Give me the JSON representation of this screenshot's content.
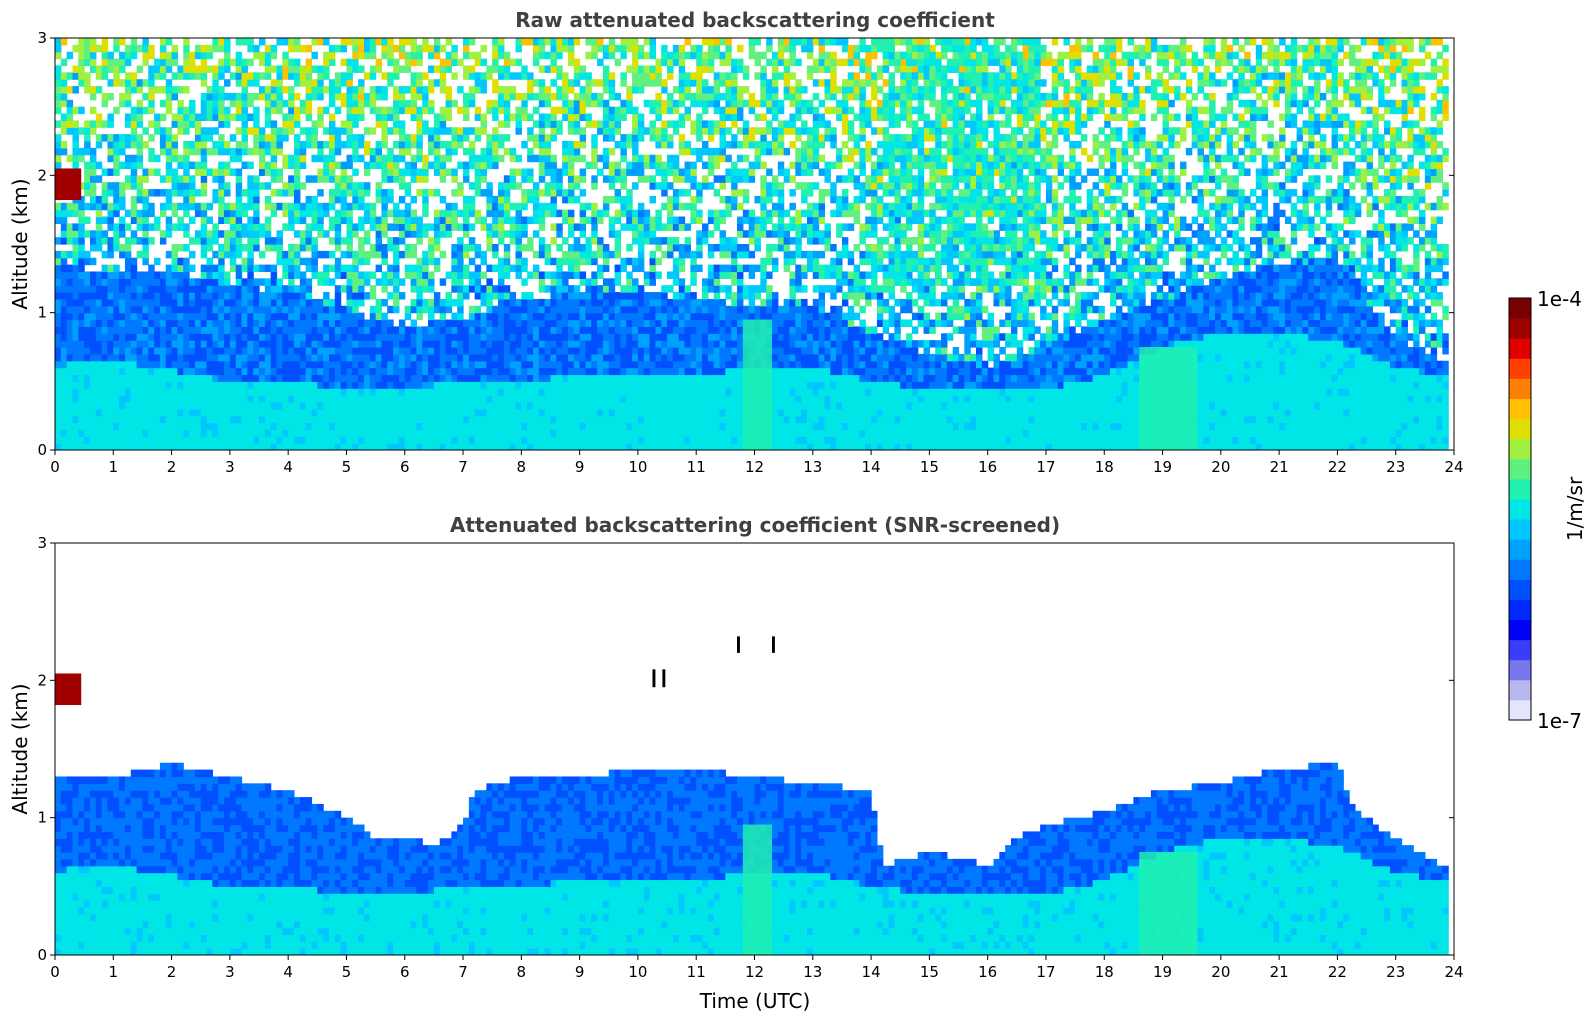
{
  "chart_data": [
    {
      "type": "heatmap",
      "title": "Raw attenuated backscattering coefficient",
      "xlabel": "",
      "ylabel": "Altitude (km)",
      "xlim": [
        0,
        24
      ],
      "ylim": [
        0,
        3
      ],
      "x_ticks": [
        "0",
        "1",
        "2",
        "3",
        "4",
        "5",
        "6",
        "7",
        "8",
        "9",
        "10",
        "11",
        "12",
        "13",
        "14",
        "15",
        "16",
        "17",
        "18",
        "19",
        "20",
        "21",
        "22",
        "23",
        "24"
      ],
      "y_ticks": [
        "0",
        "1",
        "2",
        "3"
      ],
      "data_extent_hours": 23.83,
      "boundary_layer_top_km": [
        [
          0,
          0.62
        ],
        [
          1,
          0.65
        ],
        [
          2,
          0.58
        ],
        [
          3,
          0.5
        ],
        [
          4,
          0.5
        ],
        [
          5,
          0.45
        ],
        [
          6,
          0.45
        ],
        [
          7,
          0.5
        ],
        [
          8,
          0.5
        ],
        [
          9,
          0.55
        ],
        [
          10,
          0.55
        ],
        [
          11,
          0.55
        ],
        [
          12,
          0.6
        ],
        [
          13,
          0.6
        ],
        [
          14,
          0.5
        ],
        [
          15,
          0.45
        ],
        [
          16,
          0.45
        ],
        [
          17,
          0.45
        ],
        [
          18,
          0.55
        ],
        [
          19,
          0.75
        ],
        [
          20,
          0.85
        ],
        [
          21,
          0.85
        ],
        [
          22,
          0.8
        ],
        [
          23,
          0.6
        ],
        [
          23.83,
          0.55
        ]
      ],
      "signal_fade_top_km": [
        [
          0,
          1.35
        ],
        [
          1,
          1.3
        ],
        [
          2,
          1.3
        ],
        [
          3,
          1.2
        ],
        [
          4,
          1.15
        ],
        [
          5,
          1.0
        ],
        [
          6,
          0.9
        ],
        [
          7,
          0.95
        ],
        [
          8,
          1.1
        ],
        [
          9,
          1.15
        ],
        [
          10,
          1.15
        ],
        [
          11,
          1.1
        ],
        [
          12,
          1.05
        ],
        [
          13,
          1.05
        ],
        [
          14,
          0.85
        ],
        [
          15,
          0.7
        ],
        [
          16,
          0.6
        ],
        [
          17,
          0.75
        ],
        [
          18,
          0.95
        ],
        [
          19,
          1.1
        ],
        [
          20,
          1.25
        ],
        [
          21,
          1.35
        ],
        [
          22,
          1.4
        ],
        [
          23,
          0.8
        ],
        [
          23.83,
          0.65
        ]
      ],
      "features": [
        {
          "kind": "cloud",
          "x": [
            0.0,
            0.45
          ],
          "y": [
            1.82,
            2.05
          ],
          "level": 0.95
        },
        {
          "kind": "aerosol-plume",
          "x": [
            11.8,
            12.3
          ],
          "y": [
            0,
            0.95
          ],
          "level": 0.55
        },
        {
          "kind": "aerosol-plume",
          "x": [
            18.6,
            19.6
          ],
          "y": [
            0,
            0.75
          ],
          "level": 0.55
        },
        {
          "kind": "noise-band",
          "x": [
            14.2,
            16.9
          ],
          "y": [
            1.2,
            3.0
          ],
          "level": 0.6
        }
      ]
    },
    {
      "type": "heatmap",
      "title": "Attenuated backscattering coefficient (SNR-screened)",
      "xlabel": "Time (UTC)",
      "ylabel": "Altitude (km)",
      "xlim": [
        0,
        24
      ],
      "ylim": [
        0,
        3
      ],
      "x_ticks": [
        "0",
        "1",
        "2",
        "3",
        "4",
        "5",
        "6",
        "7",
        "8",
        "9",
        "10",
        "11",
        "12",
        "13",
        "14",
        "15",
        "16",
        "17",
        "18",
        "19",
        "20",
        "21",
        "22",
        "23",
        "24"
      ],
      "y_ticks": [
        "0",
        "1",
        "2",
        "3"
      ],
      "data_extent_hours": 23.83,
      "screened_top_km": [
        [
          0,
          1.3
        ],
        [
          1,
          1.3
        ],
        [
          2,
          1.4
        ],
        [
          3,
          1.3
        ],
        [
          4,
          1.2
        ],
        [
          5,
          1.0
        ],
        [
          5.5,
          0.85
        ],
        [
          6,
          0.85
        ],
        [
          6.5,
          0.8
        ],
        [
          7,
          0.95
        ],
        [
          7.2,
          1.2
        ],
        [
          8,
          1.3
        ],
        [
          9,
          1.3
        ],
        [
          10,
          1.35
        ],
        [
          11,
          1.35
        ],
        [
          12,
          1.3
        ],
        [
          13,
          1.25
        ],
        [
          14,
          1.2
        ],
        [
          14.2,
          0.65
        ],
        [
          15,
          0.75
        ],
        [
          16,
          0.65
        ],
        [
          16.5,
          0.85
        ],
        [
          17,
          0.95
        ],
        [
          18,
          1.05
        ],
        [
          19,
          1.2
        ],
        [
          20,
          1.25
        ],
        [
          21,
          1.35
        ],
        [
          22,
          1.4
        ],
        [
          22.3,
          1.05
        ],
        [
          23,
          0.85
        ],
        [
          23.83,
          0.65
        ]
      ],
      "boundary_layer_top_km": [
        [
          0,
          0.62
        ],
        [
          1,
          0.65
        ],
        [
          2,
          0.58
        ],
        [
          3,
          0.5
        ],
        [
          4,
          0.5
        ],
        [
          5,
          0.45
        ],
        [
          6,
          0.45
        ],
        [
          7,
          0.5
        ],
        [
          8,
          0.5
        ],
        [
          9,
          0.55
        ],
        [
          10,
          0.55
        ],
        [
          11,
          0.55
        ],
        [
          12,
          0.6
        ],
        [
          13,
          0.6
        ],
        [
          14,
          0.5
        ],
        [
          15,
          0.45
        ],
        [
          16,
          0.45
        ],
        [
          17,
          0.45
        ],
        [
          18,
          0.55
        ],
        [
          19,
          0.75
        ],
        [
          20,
          0.85
        ],
        [
          21,
          0.85
        ],
        [
          22,
          0.8
        ],
        [
          23,
          0.6
        ],
        [
          23.83,
          0.55
        ]
      ],
      "features": [
        {
          "kind": "cloud",
          "x": [
            0.0,
            0.45
          ],
          "y": [
            1.82,
            2.05
          ],
          "level": 0.95
        },
        {
          "kind": "aerosol-plume",
          "x": [
            11.8,
            12.3
          ],
          "y": [
            0,
            0.95
          ],
          "level": 0.55
        },
        {
          "kind": "aerosol-plume",
          "x": [
            18.6,
            19.6
          ],
          "y": [
            0,
            0.75
          ],
          "level": 0.55
        },
        {
          "kind": "cloud",
          "x": [
            11.7,
            11.75
          ],
          "y": [
            2.2,
            2.32
          ],
          "level": 1.0
        },
        {
          "kind": "cloud",
          "x": [
            12.3,
            12.35
          ],
          "y": [
            2.2,
            2.32
          ],
          "level": 1.0
        },
        {
          "kind": "cloud",
          "x": [
            10.25,
            10.3
          ],
          "y": [
            1.95,
            2.08
          ],
          "level": 1.0
        },
        {
          "kind": "cloud",
          "x": [
            10.42,
            10.47
          ],
          "y": [
            1.95,
            2.08
          ],
          "level": 1.0
        }
      ]
    }
  ],
  "colorbar": {
    "label": "1/m/sr",
    "min_label": "1e-7",
    "max_label": "1e-4",
    "scale": "log",
    "colormap": "jet",
    "colors": [
      "#e6e6fa",
      "#b8b8f0",
      "#7878ee",
      "#3c3cff",
      "#0000ff",
      "#0028ff",
      "#0050ff",
      "#0078ff",
      "#00a0ff",
      "#00c8ff",
      "#00e6e6",
      "#20f0b0",
      "#60f080",
      "#a0f040",
      "#e0e000",
      "#ffc000",
      "#ff8000",
      "#ff4000",
      "#e00000",
      "#a00000",
      "#780000"
    ]
  }
}
